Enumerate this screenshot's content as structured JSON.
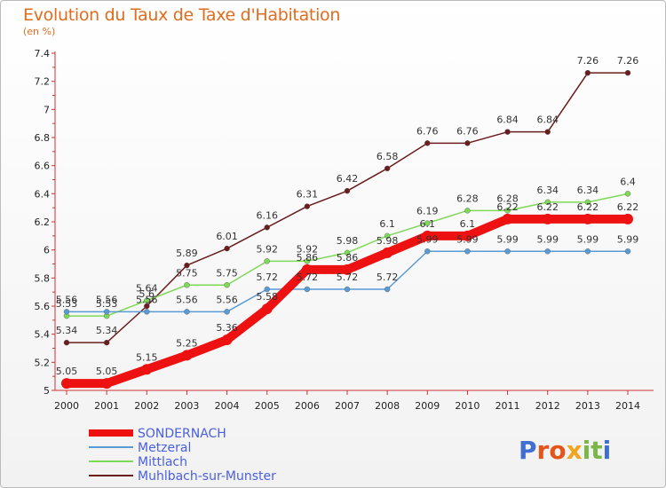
{
  "title": "Evolution du Taux de Taxe d'Habitation",
  "subtitle": "(en %)",
  "logo": "Proxiti",
  "chart_data": {
    "type": "line",
    "title": "Evolution du Taux de Taxe d'Habitation",
    "ylabel": "(en %)",
    "x": [
      "2000",
      "2001",
      "2002",
      "2003",
      "2004",
      "2005",
      "2006",
      "2007",
      "2008",
      "2009",
      "2010",
      "2011",
      "2012",
      "2013",
      "2014"
    ],
    "yticks": [
      "5",
      "5.2",
      "5.4",
      "5.6",
      "5.8",
      "6",
      "6.2",
      "6.4",
      "6.6",
      "6.8",
      "7",
      "7.2",
      "7.4"
    ],
    "ylim": [
      5,
      7.4
    ],
    "grid": false,
    "legend_position": "bottom-left",
    "series": [
      {
        "name": "SONDERNACH",
        "color": "#ee1111",
        "values": [
          5.05,
          5.05,
          5.15,
          5.25,
          5.36,
          5.58,
          5.86,
          5.86,
          5.98,
          6.1,
          6.1,
          6.22,
          6.22,
          6.22,
          6.22
        ]
      },
      {
        "name": "Metzeral",
        "color": "#5a9bd5",
        "values": [
          5.56,
          5.56,
          5.56,
          5.56,
          5.56,
          5.72,
          5.72,
          5.72,
          5.72,
          5.99,
          5.99,
          5.99,
          5.99,
          5.99,
          5.99
        ]
      },
      {
        "name": "Mittlach",
        "color": "#7ed957",
        "values": [
          5.53,
          5.53,
          5.64,
          5.75,
          5.75,
          5.92,
          5.92,
          5.98,
          6.1,
          6.19,
          6.28,
          6.28,
          6.34,
          6.34,
          6.4
        ]
      },
      {
        "name": "Muhlbach-sur-Munster",
        "color": "#6b1c1c",
        "values": [
          5.34,
          5.34,
          5.6,
          5.89,
          6.01,
          6.16,
          6.31,
          6.42,
          6.58,
          6.76,
          6.76,
          6.84,
          6.84,
          7.26,
          7.26
        ]
      }
    ]
  },
  "colors": {
    "title": "#e06c1d",
    "axis": "#cc3333"
  }
}
